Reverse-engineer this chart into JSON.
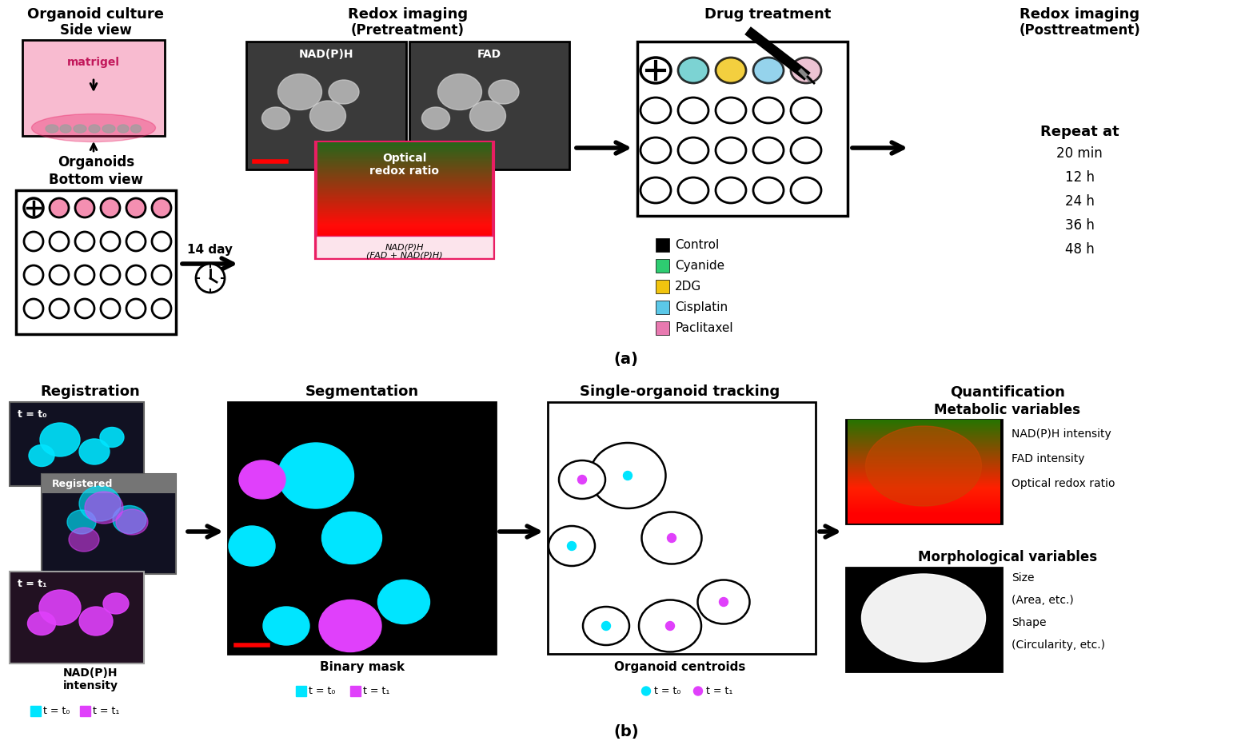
{
  "bg_color": "#ffffff",
  "panel_a": {
    "col1_title": "Organoid culture",
    "col1_subtitle1": "Side view",
    "col1_matrigel": "matrigel",
    "col1_subtitle2": "Bottom view",
    "col1_organoids": "Organoids",
    "col1_day": "14 day",
    "col2_title": "Redox imaging",
    "col2_subtitle": "(Pretreatment)",
    "col2_label1": "NAD(P)H",
    "col2_label2": "FAD",
    "col2_orr": "Optical\nredox ratio",
    "col2_formula": "NAD(P)H\n(FAD + NAD(P)H)",
    "col3_title": "Drug treatment",
    "col3_legend": [
      "Control",
      "Cyanide",
      "2DG",
      "Cisplatin",
      "Paclitaxel"
    ],
    "col3_colors": [
      "#000000",
      "#2ecc71",
      "#f1c40f",
      "#3498db",
      "#e879b0"
    ],
    "col4_title": "Redox imaging",
    "col4_subtitle": "(Posttreatment)",
    "col4_repeat": "Repeat at",
    "col4_times": [
      "20 min",
      "12 h",
      "24 h",
      "36 h",
      "48 h"
    ]
  },
  "panel_b": {
    "col1_title": "Registration",
    "col1_t0": "t = t₀",
    "col1_registered": "Registered",
    "col1_t1": "t = t₁",
    "col1_nadph": "NAD(P)H\nintensity",
    "col1_legend_t0": "t = t₀",
    "col1_legend_t1": "t = t₁",
    "col2_title": "Segmentation",
    "col2_label": "Binary mask",
    "col2_legend_t0": "t = t₀",
    "col2_legend_t1": "t = t₁",
    "col3_title": "Single-organoid tracking",
    "col3_label": "Organoid centroids",
    "col3_legend_t0": "t = t₀",
    "col3_legend_t1": "t = t₁",
    "col4_title": "Quantification",
    "col4_metabolic": "Metabolic variables",
    "col4_met_items": [
      "NAD(P)H intensity",
      "FAD intensity",
      "Optical redox ratio"
    ],
    "col4_morphological": "Morphological variables",
    "col4_morph_items": [
      "Size",
      "(Area, etc.)",
      "Shape",
      "(Circularity, etc.)"
    ]
  },
  "pink_color": "#f48fb1",
  "cyan_color": "#00e5ff",
  "magenta_color": "#e040fb"
}
